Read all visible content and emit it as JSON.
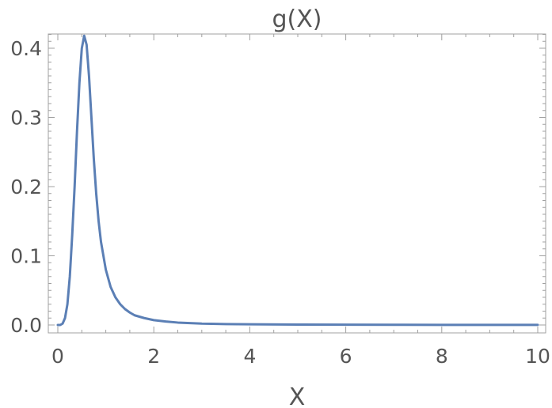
{
  "chart_data": {
    "type": "line",
    "title": "g(X)",
    "xlabel": "X",
    "ylabel": "",
    "xlim": [
      0,
      10
    ],
    "ylim": [
      0,
      0.44
    ],
    "xticks": [
      0,
      2,
      4,
      6,
      8,
      10
    ],
    "xtick_labels": [
      "0",
      "2",
      "4",
      "6",
      "8",
      "10"
    ],
    "yticks": [
      0.0,
      0.1,
      0.2,
      0.3,
      0.4
    ],
    "ytick_labels": [
      "0.0",
      "0.1",
      "0.2",
      "0.3",
      "0.4"
    ],
    "grid": false,
    "series": [
      {
        "color": "#5b7fb5",
        "x": [
          0,
          0.05,
          0.1,
          0.15,
          0.2,
          0.25,
          0.3,
          0.35,
          0.4,
          0.45,
          0.5,
          0.55,
          0.6,
          0.65,
          0.7,
          0.75,
          0.8,
          0.85,
          0.9,
          1.0,
          1.1,
          1.2,
          1.3,
          1.4,
          1.5,
          1.6,
          1.8,
          2.0,
          2.25,
          2.5,
          3.0,
          3.5,
          4.0,
          5.0,
          6.0,
          7.0,
          8.0,
          9.0,
          10.0
        ],
        "y": [
          0.0,
          0.0,
          0.002,
          0.01,
          0.03,
          0.07,
          0.13,
          0.2,
          0.28,
          0.35,
          0.4,
          0.418,
          0.405,
          0.36,
          0.3,
          0.24,
          0.19,
          0.15,
          0.12,
          0.08,
          0.055,
          0.04,
          0.03,
          0.023,
          0.018,
          0.014,
          0.01,
          0.007,
          0.005,
          0.0035,
          0.002,
          0.0013,
          0.001,
          0.0006,
          0.0004,
          0.0003,
          0.0002,
          0.0001,
          0.0001
        ]
      }
    ]
  }
}
